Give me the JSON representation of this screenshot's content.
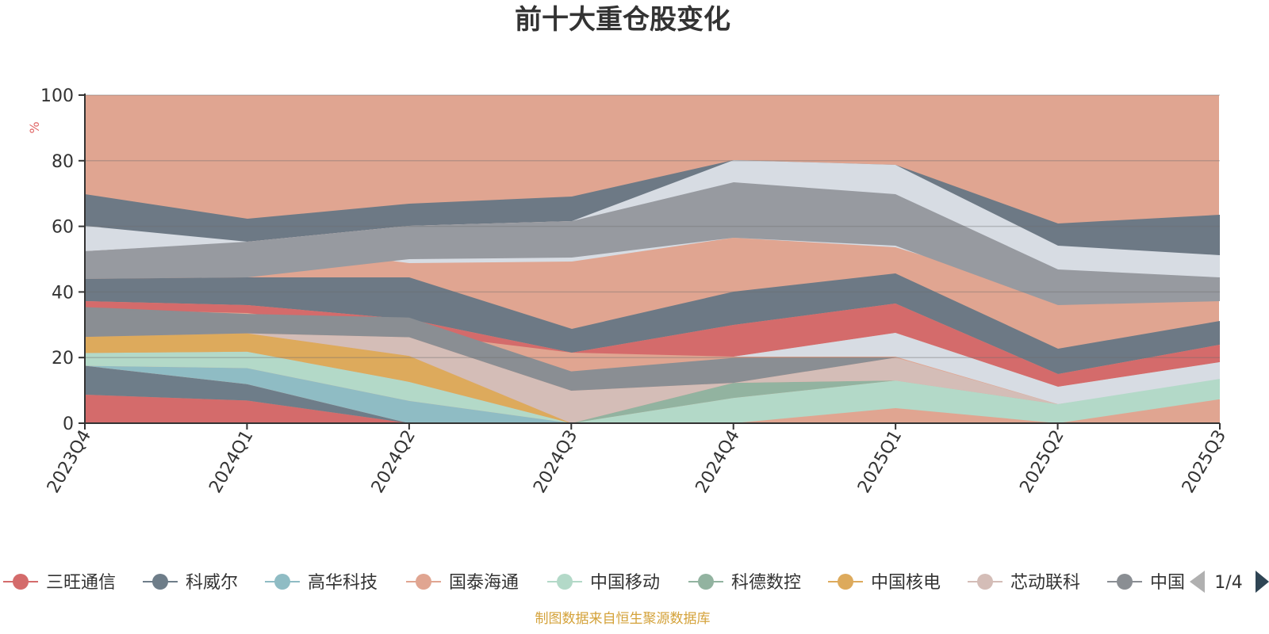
{
  "chart_data": {
    "type": "area",
    "title": "前十大重仓股变化",
    "ylabel": "%",
    "ylim": [
      0,
      100
    ],
    "yticks": [
      0,
      20,
      40,
      60,
      80,
      100
    ],
    "grid": true,
    "stacked": true,
    "legend_position": "bottom",
    "categories": [
      "2023Q4",
      "2024Q1",
      "2024Q2",
      "2024Q3",
      "2024Q4",
      "2025Q1",
      "2025Q2",
      "2025Q3"
    ],
    "series": [
      {
        "name": "三旺通信",
        "color": "#d46b6b",
        "values": [
          8.7,
          6.9,
          0,
          0,
          0,
          0,
          0,
          0
        ]
      },
      {
        "name": "科威尔",
        "color": "#6e7d89",
        "values": [
          8.8,
          5.0,
          0,
          0,
          0,
          0,
          0,
          0
        ]
      },
      {
        "name": "高华科技",
        "color": "#8fbcc4",
        "values": [
          0,
          4.9,
          6.8,
          0,
          0,
          0,
          0,
          0
        ]
      },
      {
        "name": "国泰海通",
        "color": "#e0a591",
        "values": [
          0,
          0,
          0,
          0,
          0,
          4.6,
          0,
          7.3
        ]
      },
      {
        "name": "中国移动",
        "color": "#b3d9c8",
        "values": [
          3.9,
          5.0,
          5.8,
          0,
          7.7,
          8.4,
          5.8,
          6.2
        ]
      },
      {
        "name": "科德数控",
        "color": "#92b3a0",
        "values": [
          0,
          0,
          0,
          0,
          4.6,
          0,
          0,
          0
        ]
      },
      {
        "name": "中国核电",
        "color": "#ddaa5c",
        "values": [
          4.9,
          5.6,
          7.9,
          0,
          0,
          0,
          0,
          0
        ]
      },
      {
        "name": "芯动联科",
        "color": "#d4bdb7",
        "values": [
          0,
          0,
          5.7,
          9.9,
          0,
          7.0,
          0,
          0
        ]
      },
      {
        "name": "中国",
        "color": "#8a8e93",
        "values": [
          9.1,
          5.9,
          6.0,
          5.9,
          7.6,
          0,
          0,
          0
        ]
      }
    ],
    "page_indicator": "1/4"
  },
  "footer": {
    "source": "制图数据来自恒生聚源数据库"
  },
  "colors": {
    "top_band": "#e0a591",
    "axis": "#333333",
    "unit": "#e06666",
    "source": "#d4a23a"
  }
}
